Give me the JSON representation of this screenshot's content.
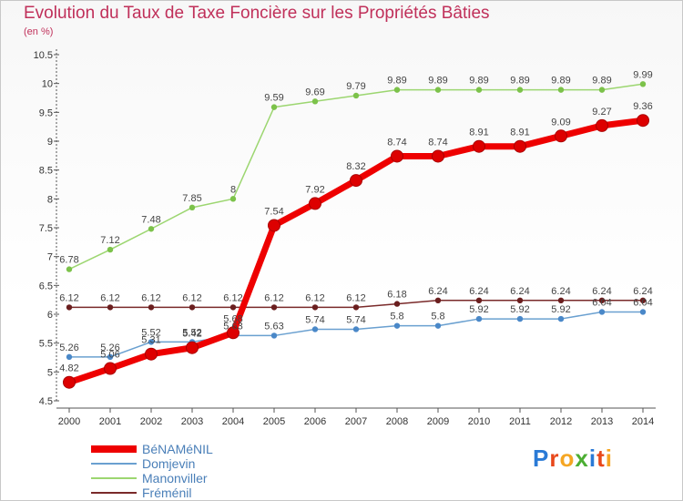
{
  "title": "Evolution du Taux de Taxe Foncière sur les Propriétés Bâties",
  "unit": "(en %)",
  "logo": {
    "letters": [
      "P",
      "r",
      "o",
      "x",
      "i",
      "t",
      "i"
    ],
    "colors": [
      "#2a7ad6",
      "#e8481b",
      "#f5a623",
      "#4cae33",
      "#2a7ad6",
      "#e8481b",
      "#f5a623"
    ]
  },
  "chart_data": {
    "type": "line",
    "title": "Evolution du Taux de Taxe Foncière sur les Propriétés Bâties",
    "ylabel": "(en %)",
    "xlabel": "",
    "categories": [
      "2000",
      "2001",
      "2002",
      "2003",
      "2004",
      "2005",
      "2006",
      "2007",
      "2008",
      "2009",
      "2010",
      "2011",
      "2012",
      "2013",
      "2014"
    ],
    "ylim": [
      4.5,
      10.5
    ],
    "yticks": [
      "4.5",
      "5",
      "5.5",
      "6",
      "6.5",
      "7",
      "7.5",
      "8",
      "8.5",
      "9",
      "9.5",
      "10",
      "10.5"
    ],
    "grid": false,
    "legend": "bottom-left",
    "series": [
      {
        "name": "BéNAMéNIL",
        "color": "#ee0000",
        "emphasis": true,
        "values": [
          4.82,
          5.06,
          5.31,
          5.42,
          5.68,
          7.54,
          7.92,
          8.32,
          8.74,
          8.74,
          8.91,
          8.91,
          9.09,
          9.27,
          9.36
        ],
        "labels": [
          "4.82",
          "5.06",
          "5.31",
          "5.42",
          "5.68",
          "7.54",
          "7.92",
          "8.32",
          "8.74",
          "8.74",
          "8.91",
          "8.91",
          "9.09",
          "9.27",
          "9.36"
        ]
      },
      {
        "name": "Domjevin",
        "color": "#6aa0d0",
        "marker": "#4a88c8",
        "values": [
          5.26,
          5.26,
          5.52,
          5.52,
          5.63,
          5.63,
          5.74,
          5.74,
          5.8,
          5.8,
          5.92,
          5.92,
          5.92,
          6.04,
          6.04
        ],
        "labels": [
          "5.26",
          "5.26",
          "5.52",
          "5.52",
          "5.63",
          "5.63",
          "5.74",
          "5.74",
          "5.8",
          "5.8",
          "5.92",
          "5.92",
          "5.92",
          "6.04",
          "6.04"
        ]
      },
      {
        "name": "Manonviller",
        "color": "#9cd670",
        "marker": "#7cc24a",
        "values": [
          6.78,
          7.12,
          7.48,
          7.85,
          8,
          9.59,
          9.69,
          9.79,
          9.89,
          9.89,
          9.89,
          9.89,
          9.89,
          9.89,
          9.99
        ],
        "labels": [
          "6.78",
          "7.12",
          "7.48",
          "7.85",
          "8",
          "9.59",
          "9.69",
          "9.79",
          "9.89",
          "9.89",
          "9.89",
          "9.89",
          "9.89",
          "9.89",
          "9.99"
        ]
      },
      {
        "name": "Fréménil",
        "color": "#7a2a2a",
        "marker": "#6a1e1e",
        "values": [
          6.12,
          6.12,
          6.12,
          6.12,
          6.12,
          6.12,
          6.12,
          6.12,
          6.18,
          6.24,
          6.24,
          6.24,
          6.24,
          6.24,
          6.24
        ],
        "labels": [
          "6.12",
          "6.12",
          "6.12",
          "6.12",
          "6.12",
          "6.12",
          "6.12",
          "6.12",
          "6.18",
          "6.24",
          "6.24",
          "6.24",
          "6.24",
          "6.24",
          "6.24"
        ]
      }
    ]
  }
}
